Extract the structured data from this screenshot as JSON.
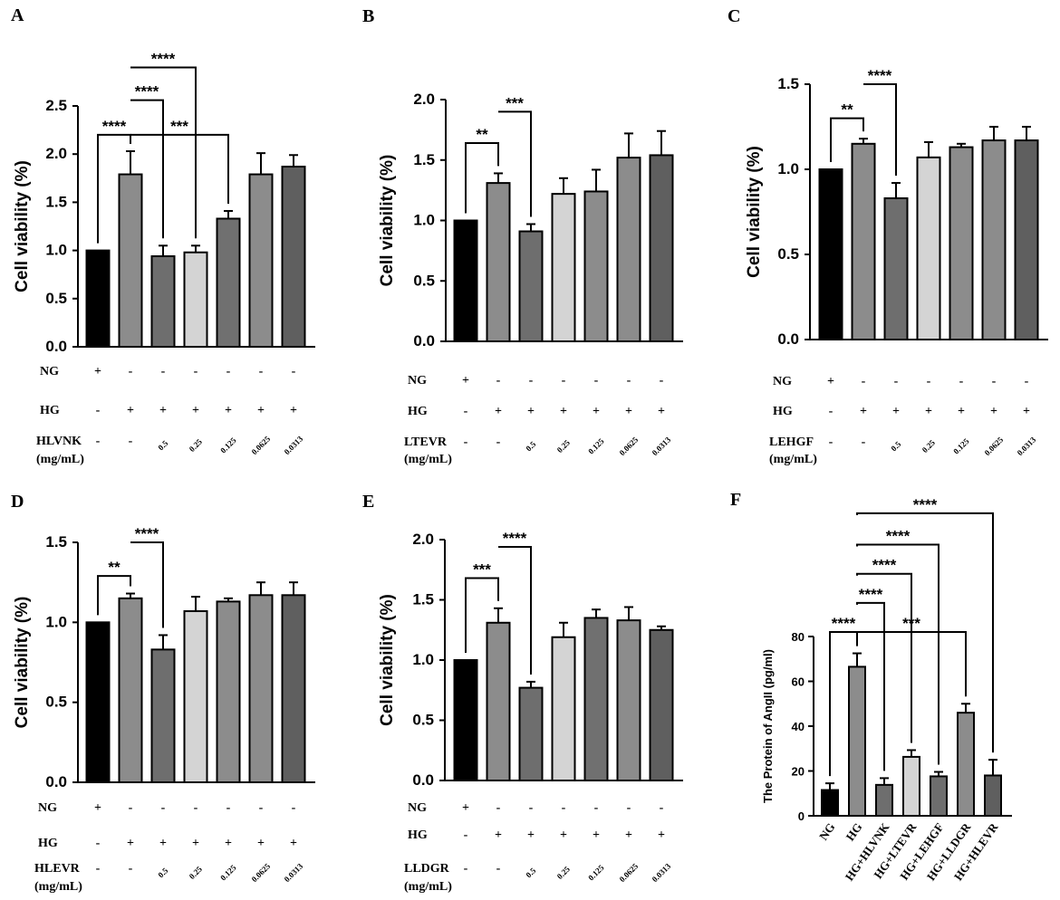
{
  "chart_data": [
    {
      "panel": "A",
      "type": "bar",
      "ylabel": "Cell viability (%)",
      "ylim": [
        0,
        2.5
      ],
      "yticks": [
        "0.0",
        "0.5",
        "1.0",
        "1.5",
        "2.0",
        "2.5"
      ],
      "values": [
        1.0,
        1.79,
        0.94,
        0.98,
        1.33,
        1.79,
        1.87
      ],
      "errors": [
        0,
        0.24,
        0.11,
        0.07,
        0.08,
        0.22,
        0.12
      ],
      "colors": [
        "#000000",
        "#8c8c8c",
        "#6e6e6e",
        "#d4d4d4",
        "#707070",
        "#8c8c8c",
        "#5f5f5f"
      ],
      "rows": [
        {
          "label": "NG",
          "marks": [
            "+",
            "-",
            "-",
            "-",
            "-",
            "-",
            "-"
          ]
        },
        {
          "label": "HG",
          "marks": [
            "-",
            "+",
            "+",
            "+",
            "+",
            "+",
            "+"
          ]
        }
      ],
      "treatment": "HLVNK",
      "unit": "(mg/mL)",
      "concentrations": [
        "-",
        "-",
        "0.5",
        "0.25",
        "0.125",
        "0.0625",
        "0.0313"
      ],
      "significance": [
        {
          "from": 0,
          "to": 1,
          "label": "****",
          "y": 2.2
        },
        {
          "from": 1,
          "to": 4,
          "label": "***",
          "y": 2.2
        },
        {
          "from": 1,
          "to": 2,
          "label": "****",
          "y": 2.56
        },
        {
          "from": 1,
          "to": 3,
          "label": "****",
          "y": 2.9
        }
      ]
    },
    {
      "panel": "B",
      "type": "bar",
      "ylabel": "Cell viability (%)",
      "ylim": [
        0,
        2.0
      ],
      "yticks": [
        "0.0",
        "0.5",
        "1.0",
        "1.5",
        "2.0"
      ],
      "values": [
        1.0,
        1.31,
        0.91,
        1.22,
        1.24,
        1.52,
        1.54
      ],
      "errors": [
        0,
        0.08,
        0.06,
        0.13,
        0.18,
        0.2,
        0.2
      ],
      "colors": [
        "#000000",
        "#8c8c8c",
        "#6e6e6e",
        "#d4d4d4",
        "#8c8c8c",
        "#8c8c8c",
        "#5f5f5f"
      ],
      "rows": [
        {
          "label": "NG",
          "marks": [
            "+",
            "-",
            "-",
            "-",
            "-",
            "-",
            "-"
          ]
        },
        {
          "label": "HG",
          "marks": [
            "-",
            "+",
            "+",
            "+",
            "+",
            "+",
            "+"
          ]
        }
      ],
      "treatment": "LTEVR",
      "unit": "(mg/mL)",
      "concentrations": [
        "-",
        "-",
        "0.5",
        "0.25",
        "0.125",
        "0.0625",
        "0.0313"
      ],
      "significance": [
        {
          "from": 0,
          "to": 1,
          "label": "**",
          "y": 1.64
        },
        {
          "from": 1,
          "to": 2,
          "label": "***",
          "y": 1.9
        }
      ]
    },
    {
      "panel": "C",
      "type": "bar",
      "ylabel": "Cell viability (%)",
      "ylim": [
        0,
        1.5
      ],
      "yticks": [
        "0.0",
        "0.5",
        "1.0",
        "1.5"
      ],
      "values": [
        1.0,
        1.15,
        0.83,
        1.07,
        1.13,
        1.17,
        1.17
      ],
      "errors": [
        0,
        0.03,
        0.09,
        0.09,
        0.02,
        0.08,
        0.08
      ],
      "colors": [
        "#000000",
        "#8c8c8c",
        "#6e6e6e",
        "#d4d4d4",
        "#8c8c8c",
        "#8c8c8c",
        "#5f5f5f"
      ],
      "rows": [
        {
          "label": "NG",
          "marks": [
            "+",
            "-",
            "-",
            "-",
            "-",
            "-",
            "-"
          ]
        },
        {
          "label": "HG",
          "marks": [
            "-",
            "+",
            "+",
            "+",
            "+",
            "+",
            "+"
          ]
        }
      ],
      "treatment": "LEHGF",
      "unit": "(mg/mL)",
      "concentrations": [
        "-",
        "-",
        "0.5",
        "0.25",
        "0.125",
        "0.0625",
        "0.0313"
      ],
      "significance": [
        {
          "from": 0,
          "to": 1,
          "label": "**",
          "y": 1.3
        },
        {
          "from": 1,
          "to": 2,
          "label": "****",
          "y": 1.5
        }
      ]
    },
    {
      "panel": "D",
      "type": "bar",
      "ylabel": "Cell viability (%)",
      "ylim": [
        0,
        1.5
      ],
      "yticks": [
        "0.0",
        "0.5",
        "1.0",
        "1.5"
      ],
      "values": [
        1.0,
        1.15,
        0.83,
        1.07,
        1.13,
        1.17,
        1.17
      ],
      "errors": [
        0,
        0.03,
        0.09,
        0.09,
        0.02,
        0.08,
        0.08
      ],
      "colors": [
        "#000000",
        "#8c8c8c",
        "#6e6e6e",
        "#d4d4d4",
        "#8c8c8c",
        "#8c8c8c",
        "#5f5f5f"
      ],
      "rows": [
        {
          "label": "NG",
          "marks": [
            "+",
            "-",
            "-",
            "-",
            "-",
            "-",
            "-"
          ]
        },
        {
          "label": "HG",
          "marks": [
            "-",
            "+",
            "+",
            "+",
            "+",
            "+",
            "+"
          ]
        }
      ],
      "treatment": "HLEVR",
      "unit": "(mg/mL)",
      "concentrations": [
        "-",
        "-",
        "0.5",
        "0.25",
        "0.125",
        "0.0625",
        "0.0313"
      ],
      "significance": [
        {
          "from": 0,
          "to": 1,
          "label": "**",
          "y": 1.29
        },
        {
          "from": 1,
          "to": 2,
          "label": "****",
          "y": 1.5
        }
      ]
    },
    {
      "panel": "E",
      "type": "bar",
      "ylabel": "Cell viability (%)",
      "ylim": [
        0,
        2.0
      ],
      "yticks": [
        "0.0",
        "0.5",
        "1.0",
        "1.5",
        "2.0"
      ],
      "values": [
        1.0,
        1.31,
        0.77,
        1.19,
        1.35,
        1.33,
        1.25
      ],
      "errors": [
        0,
        0.12,
        0.05,
        0.12,
        0.07,
        0.11,
        0.03
      ],
      "colors": [
        "#000000",
        "#8c8c8c",
        "#6e6e6e",
        "#d4d4d4",
        "#707070",
        "#8c8c8c",
        "#5f5f5f"
      ],
      "rows": [
        {
          "label": "NG",
          "marks": [
            "+",
            "-",
            "-",
            "-",
            "-",
            "-",
            "-"
          ]
        },
        {
          "label": "HG",
          "marks": [
            "-",
            "+",
            "+",
            "+",
            "+",
            "+",
            "+"
          ]
        }
      ],
      "treatment": "LLDGR",
      "unit": "(mg/mL)",
      "concentrations": [
        "-",
        "-",
        "0.5",
        "0.25",
        "0.125",
        "0.0625",
        "0.0313"
      ],
      "significance": [
        {
          "from": 0,
          "to": 1,
          "label": "***",
          "y": 1.68
        },
        {
          "from": 1,
          "to": 2,
          "label": "****",
          "y": 1.94
        }
      ]
    },
    {
      "panel": "F",
      "type": "bar",
      "ylabel": "The Protein of AngII (pg/ml)",
      "ylim": [
        0,
        80
      ],
      "yticks": [
        "0",
        "20",
        "40",
        "60",
        "80"
      ],
      "categories": [
        "NG",
        "HG",
        "HG+HLVNK",
        "HG+LTEVR",
        "HG+LEHGF",
        "HG+LLDGR",
        "HG+HLEVR"
      ],
      "values": [
        11.5,
        66.5,
        13.8,
        26.3,
        17.6,
        46.0,
        18.0
      ],
      "errors": [
        3,
        6,
        3,
        3,
        2,
        4,
        7
      ],
      "colors": [
        "#000000",
        "#8c8c8c",
        "#6e6e6e",
        "#d4d4d4",
        "#6e6e6e",
        "#8c8c8c",
        "#5f5f5f"
      ],
      "significance": [
        {
          "from": 0,
          "to": 1,
          "label": "****",
          "y": 82
        },
        {
          "from": 1,
          "to": 5,
          "label": "***",
          "y": 82
        },
        {
          "from": 1,
          "to": 2,
          "label": "****",
          "y": 95
        },
        {
          "from": 1,
          "to": 3,
          "label": "****",
          "y": 108
        },
        {
          "from": 1,
          "to": 4,
          "label": "****",
          "y": 121
        },
        {
          "from": 1,
          "to": 6,
          "label": "****",
          "y": 135
        }
      ]
    }
  ]
}
